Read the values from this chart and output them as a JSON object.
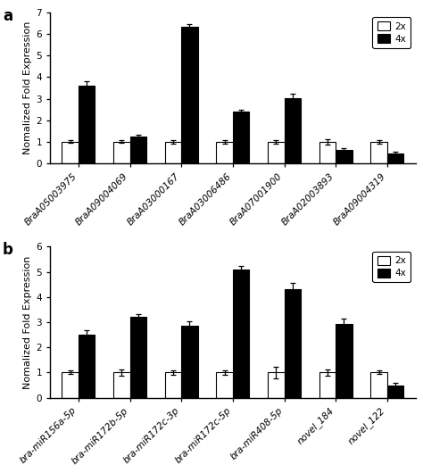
{
  "panel_a": {
    "categories": [
      "BraA05003975",
      "BraA09004069",
      "BraA03000167",
      "BraA03006486",
      "BraA07001900",
      "BraA02003893",
      "BraA09004319"
    ],
    "values_2x": [
      1.0,
      1.0,
      1.0,
      1.0,
      1.0,
      1.0,
      1.0
    ],
    "values_4x": [
      3.6,
      1.25,
      6.35,
      2.4,
      3.02,
      0.62,
      0.45
    ],
    "err_2x": [
      0.06,
      0.06,
      0.09,
      0.08,
      0.08,
      0.12,
      0.07
    ],
    "err_4x": [
      0.2,
      0.09,
      0.12,
      0.1,
      0.22,
      0.1,
      0.08
    ],
    "ylabel": "Nomalized Fold Expression",
    "ylim": [
      0,
      7
    ],
    "yticks": [
      0,
      1,
      2,
      3,
      4,
      5,
      6,
      7
    ],
    "panel_label": "a"
  },
  "panel_b": {
    "categories": [
      "bra-miR156a-5p",
      "bra-miR172b-5p",
      "bra-miR172c-3p",
      "bra-miR172c-5p",
      "bra-miR408-5p",
      "novel_184",
      "novel_122"
    ],
    "values_2x": [
      1.0,
      1.0,
      1.0,
      1.0,
      1.0,
      1.0,
      1.0
    ],
    "values_4x": [
      2.5,
      3.2,
      2.85,
      5.1,
      4.3,
      2.93,
      0.5
    ],
    "err_2x": [
      0.07,
      0.12,
      0.1,
      0.1,
      0.22,
      0.13,
      0.07
    ],
    "err_4x": [
      0.2,
      0.12,
      0.18,
      0.15,
      0.28,
      0.22,
      0.08
    ],
    "ylabel": "Nomalized Fold Expression",
    "ylim": [
      0,
      6
    ],
    "yticks": [
      0,
      1,
      2,
      3,
      4,
      5,
      6
    ],
    "panel_label": "b"
  },
  "color_2x": "white",
  "color_4x": "black",
  "edgecolor": "black",
  "bar_width": 0.32,
  "legend_labels": [
    "2x",
    "4x"
  ],
  "tick_fontsize": 7.5,
  "ylabel_fontsize": 8,
  "panel_label_fontsize": 12
}
